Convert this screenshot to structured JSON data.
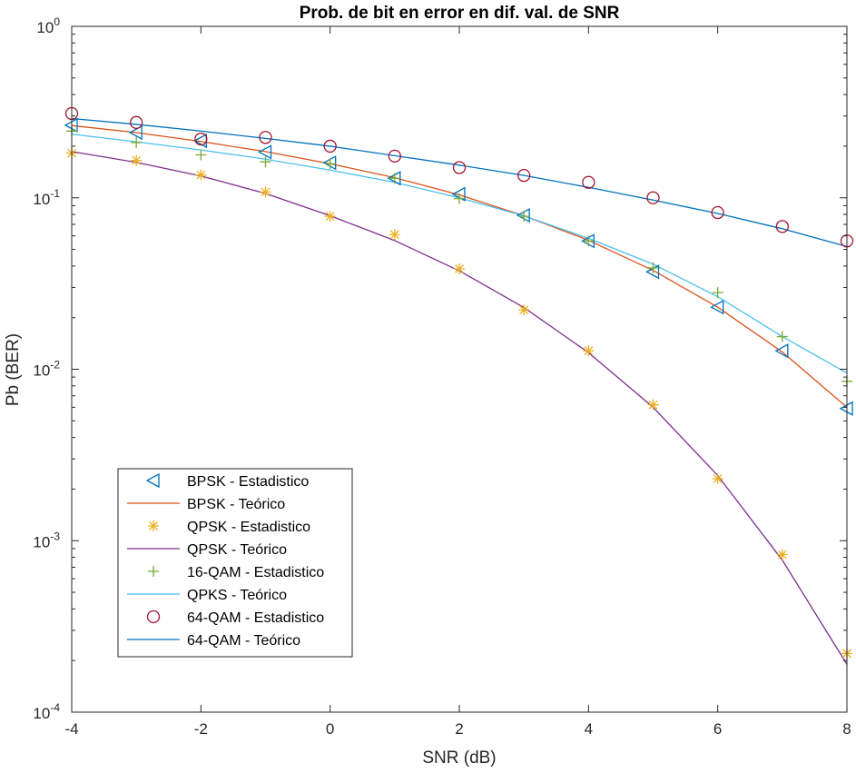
{
  "chart_data": {
    "type": "line",
    "title": "Prob. de bit en error en dif. val. de SNR",
    "xlabel": "SNR (dB)",
    "ylabel": "Pb (BER)",
    "xlim": [
      -4,
      8
    ],
    "ylim": [
      0.0001,
      1
    ],
    "yscale": "log",
    "grid": false,
    "legend_position": "lower-left",
    "x_ticks": [
      -4,
      -2,
      0,
      2,
      4,
      6,
      8
    ],
    "x_tick_labels": [
      "-4",
      "-2",
      "0",
      "2",
      "4",
      "6",
      "8"
    ],
    "y_ticks": [
      0.0001,
      0.001,
      0.01,
      0.1,
      1
    ],
    "y_tick_labels": [
      {
        "base": "10",
        "exp": "-4"
      },
      {
        "base": "10",
        "exp": "-3"
      },
      {
        "base": "10",
        "exp": "-2"
      },
      {
        "base": "10",
        "exp": "-1"
      },
      {
        "base": "10",
        "exp": "0"
      }
    ],
    "x": [
      -4,
      -3,
      -2,
      -1,
      0,
      1,
      2,
      3,
      4,
      5,
      6,
      7,
      8
    ],
    "series": [
      {
        "name": "BPSK - Estadistico",
        "kind": "marker",
        "marker": "triangle-left",
        "color": "#0072BD",
        "values": [
          0.265,
          0.24,
          0.215,
          0.185,
          0.16,
          0.13,
          0.105,
          0.079,
          0.056,
          0.037,
          0.023,
          0.0128,
          0.0059
        ]
      },
      {
        "name": "BPSK - Teórico",
        "kind": "line",
        "color": "#D95319",
        "values": [
          0.264,
          0.24,
          0.213,
          0.186,
          0.158,
          0.131,
          0.104,
          0.0786,
          0.0565,
          0.0377,
          0.023,
          0.0126,
          0.006
        ]
      },
      {
        "name": "QPSK - Estadistico",
        "kind": "marker",
        "marker": "asterisk",
        "color": "#EDB120",
        "values": [
          0.182,
          0.165,
          0.136,
          0.108,
          0.078,
          0.061,
          0.0385,
          0.0222,
          0.0128,
          0.0062,
          0.0023,
          0.00083,
          0.00022
        ]
      },
      {
        "name": "QPSK - Teórico",
        "kind": "line",
        "color": "#7E2F8E",
        "values": [
          0.186,
          0.161,
          0.134,
          0.106,
          0.0786,
          0.0563,
          0.0375,
          0.0229,
          0.0125,
          0.006,
          0.0024,
          0.00077,
          0.00019
        ]
      },
      {
        "name": "16-QAM - Estadistico",
        "kind": "marker",
        "marker": "plus",
        "color": "#77AC30",
        "values": [
          0.245,
          0.21,
          0.178,
          0.162,
          0.158,
          0.13,
          0.099,
          0.078,
          0.056,
          0.039,
          0.028,
          0.0155,
          0.0085
        ]
      },
      {
        "name": "QPKS - Teórico",
        "kind": "line",
        "color": "#4DBEEE",
        "values": [
          0.235,
          0.212,
          0.19,
          0.168,
          0.145,
          0.123,
          0.1,
          0.0785,
          0.058,
          0.041,
          0.0265,
          0.0155,
          0.0095
        ]
      },
      {
        "name": "64-QAM - Estadistico",
        "kind": "marker",
        "marker": "circle",
        "color": "#A2142F",
        "values": [
          0.31,
          0.275,
          0.22,
          0.225,
          0.2,
          0.175,
          0.15,
          0.135,
          0.123,
          0.1,
          0.082,
          0.068,
          0.056
        ]
      },
      {
        "name": "64-QAM - Teórico",
        "kind": "line",
        "color": "#0072BD",
        "values": [
          0.29,
          0.268,
          0.245,
          0.222,
          0.2,
          0.176,
          0.155,
          0.135,
          0.115,
          0.097,
          0.081,
          0.066,
          0.052
        ]
      }
    ]
  }
}
